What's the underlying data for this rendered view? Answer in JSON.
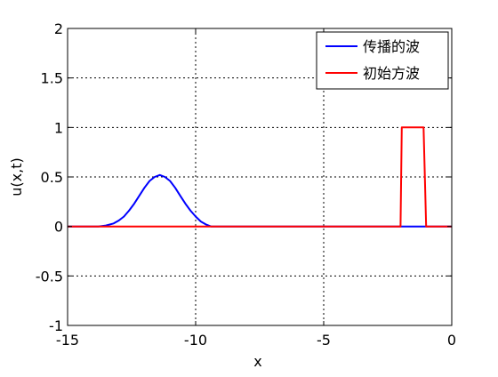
{
  "chart_data": {
    "type": "line",
    "xlabel": "x",
    "ylabel": "u(x,t)",
    "xlim": [
      -15,
      0
    ],
    "ylim": [
      -1,
      2
    ],
    "xticks": [
      -15,
      -10,
      -5,
      0
    ],
    "xtick_labels": [
      "-15",
      "-10",
      "-5",
      "0"
    ],
    "yticks": [
      -1,
      -0.5,
      0,
      0.5,
      1,
      1.5,
      2
    ],
    "ytick_labels": [
      "-1",
      "-0.5",
      "0",
      "0.5",
      "1",
      "1.5",
      "2"
    ],
    "grid": true,
    "legend_position": "top-right",
    "series": [
      {
        "name": "传播的波",
        "color": "#0000ff",
        "x": [
          -15,
          -13.8,
          -13.5,
          -13.2,
          -13.0,
          -12.8,
          -12.6,
          -12.4,
          -12.2,
          -12.0,
          -11.8,
          -11.6,
          -11.4,
          -11.2,
          -11.0,
          -10.8,
          -10.6,
          -10.4,
          -10.2,
          -10.0,
          -9.8,
          -9.6,
          -9.4,
          -9.0,
          0
        ],
        "y": [
          0,
          0,
          0.01,
          0.03,
          0.06,
          0.1,
          0.16,
          0.23,
          0.31,
          0.39,
          0.46,
          0.5,
          0.52,
          0.5,
          0.46,
          0.39,
          0.31,
          0.23,
          0.16,
          0.1,
          0.05,
          0.02,
          0.0,
          0,
          0
        ]
      },
      {
        "name": "初始方波",
        "color": "#ff0000",
        "x": [
          -15,
          -2.0,
          -1.95,
          -1.1,
          -1.0,
          0
        ],
        "y": [
          0,
          0,
          1,
          1,
          0,
          0
        ]
      }
    ]
  }
}
